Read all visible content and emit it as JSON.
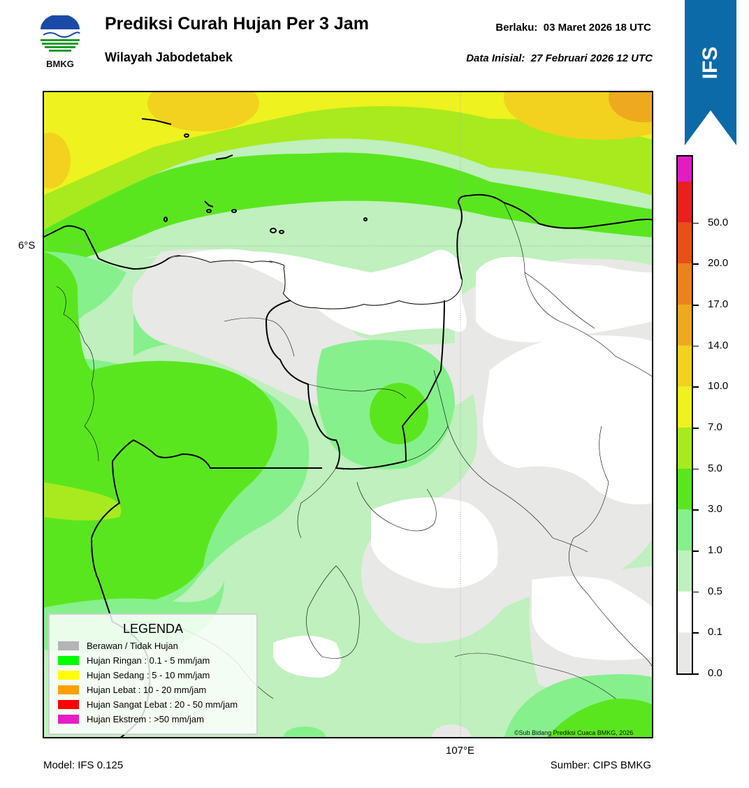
{
  "header": {
    "title": "Prediksi Curah Hujan Per 3 Jam",
    "subtitle": "Wilayah Jabodetabek",
    "valid_label": "Berlaku:",
    "valid_time": "03 Maret 2026 18 UTC",
    "init_label": "Data Inisial:",
    "init_time": "27 Februari 2026 12 UTC"
  },
  "logo": {
    "text": "BMKG",
    "icon": "bmkg-logo-icon"
  },
  "banner": {
    "text": "IFS",
    "color": "#0c6aa8"
  },
  "map": {
    "lat_label": "6°S",
    "lon_label": "107°E",
    "copyright": "©Sub Bidang Prediksi Cuaca BMKG, 2026"
  },
  "colorbar": {
    "ticks": [
      "0.0",
      "0.1",
      "0.5",
      "1.0",
      "3.0",
      "5.0",
      "7.0",
      "10.0",
      "14.0",
      "17.0",
      "20.0",
      "50.0"
    ],
    "colors": [
      "#e8e8e6",
      "#ffffff",
      "#bff0bd",
      "#86f08c",
      "#5ae61e",
      "#a8ea1e",
      "#eef21e",
      "#f2d21e",
      "#eeaa1e",
      "#ea821e",
      "#e85018",
      "#e8201e",
      "#e01ec0"
    ]
  },
  "legend": {
    "title": "LEGENDA",
    "items": [
      {
        "label": "Berawan / Tidak Hujan",
        "color": "#b4b4b4"
      },
      {
        "label": "Hujan Ringan : 0.1 - 5 mm/jam",
        "color": "#00ff00"
      },
      {
        "label": "Hujan Sedang : 5 - 10 mm/jam",
        "color": "#ffff00"
      },
      {
        "label": "Hujan Lebat : 10 - 20 mm/jam",
        "color": "#ffa000"
      },
      {
        "label": "Hujan Sangat Lebat : 20 - 50 mm/jam",
        "color": "#ff0000"
      },
      {
        "label": "Hujan Ekstrem : >50 mm/jam",
        "color": "#e61ec8"
      }
    ]
  },
  "footer": {
    "model": "Model: IFS 0.125",
    "source": "Sumber: CIPS BMKG"
  }
}
